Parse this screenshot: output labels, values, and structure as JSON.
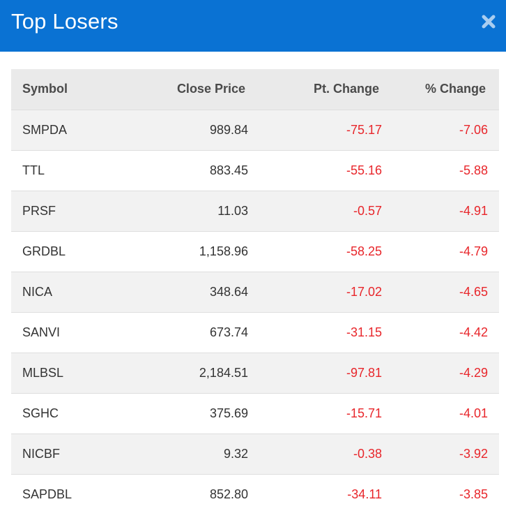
{
  "modal": {
    "title": "Top Losers",
    "close_icon": "close-x-icon"
  },
  "colors": {
    "header_bg": "#0a72d3",
    "negative": "#e8262b",
    "table_header_bg": "#eaeaea",
    "row_alt_bg": "#f2f2f2"
  },
  "table": {
    "headers": {
      "symbol": "Symbol",
      "close_price": "Close Price",
      "pt_change": "Pt. Change",
      "pct_change": "% Change"
    },
    "rows": [
      {
        "symbol": "SMPDA",
        "close_price": "989.84",
        "pt_change": "-75.17",
        "pct_change": "-7.06"
      },
      {
        "symbol": "TTL",
        "close_price": "883.45",
        "pt_change": "-55.16",
        "pct_change": "-5.88"
      },
      {
        "symbol": "PRSF",
        "close_price": "11.03",
        "pt_change": "-0.57",
        "pct_change": "-4.91"
      },
      {
        "symbol": "GRDBL",
        "close_price": "1,158.96",
        "pt_change": "-58.25",
        "pct_change": "-4.79"
      },
      {
        "symbol": "NICA",
        "close_price": "348.64",
        "pt_change": "-17.02",
        "pct_change": "-4.65"
      },
      {
        "symbol": "SANVI",
        "close_price": "673.74",
        "pt_change": "-31.15",
        "pct_change": "-4.42"
      },
      {
        "symbol": "MLBSL",
        "close_price": "2,184.51",
        "pt_change": "-97.81",
        "pct_change": "-4.29"
      },
      {
        "symbol": "SGHC",
        "close_price": "375.69",
        "pt_change": "-15.71",
        "pct_change": "-4.01"
      },
      {
        "symbol": "NICBF",
        "close_price": "9.32",
        "pt_change": "-0.38",
        "pct_change": "-3.92"
      },
      {
        "symbol": "SAPDBL",
        "close_price": "852.80",
        "pt_change": "-34.11",
        "pct_change": "-3.85"
      }
    ]
  }
}
